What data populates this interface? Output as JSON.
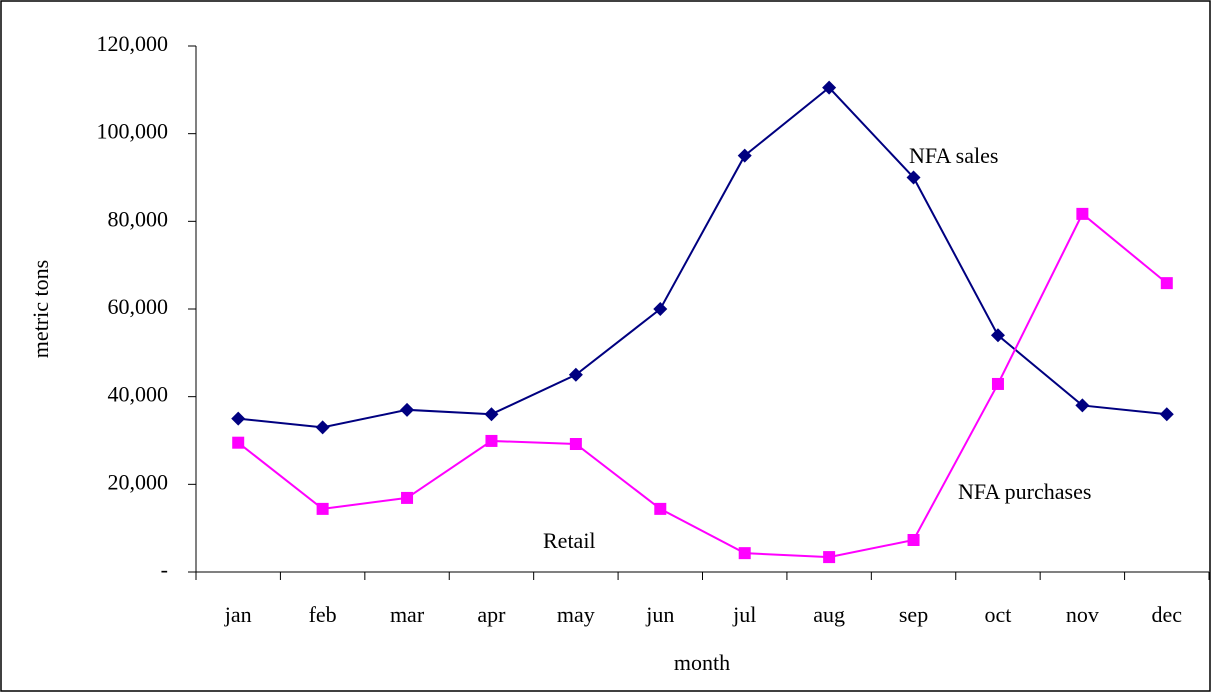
{
  "chart_data": {
    "type": "line",
    "x_label": "month",
    "y_label": "metric tons",
    "categories": [
      "jan",
      "feb",
      "mar",
      "apr",
      "may",
      "jun",
      "jul",
      "aug",
      "sep",
      "oct",
      "nov",
      "dec"
    ],
    "series": [
      {
        "name": "NFA sales",
        "color": "#000080",
        "marker": "diamond",
        "values": [
          35000,
          33000,
          37000,
          36000,
          45000,
          60000,
          95000,
          110500,
          90000,
          54000,
          38000,
          36000
        ]
      },
      {
        "name": "NFA purchases",
        "color": "#ff00ff",
        "marker": "square",
        "values": [
          29500,
          14400,
          16900,
          29900,
          29200,
          14400,
          4300,
          3400,
          7300,
          42900,
          81700,
          65900
        ]
      }
    ],
    "annotations": [
      "Retail"
    ],
    "ylim": [
      0,
      120000
    ],
    "yticks": [
      {
        "value": 0,
        "label": "-"
      },
      {
        "value": 20000,
        "label": "20,000"
      },
      {
        "value": 40000,
        "label": "40,000"
      },
      {
        "value": 60000,
        "label": "60,000"
      },
      {
        "value": 80000,
        "label": "80,000"
      },
      {
        "value": 100000,
        "label": "100,000"
      },
      {
        "value": 120000,
        "label": "120,000"
      }
    ],
    "grid": false
  }
}
